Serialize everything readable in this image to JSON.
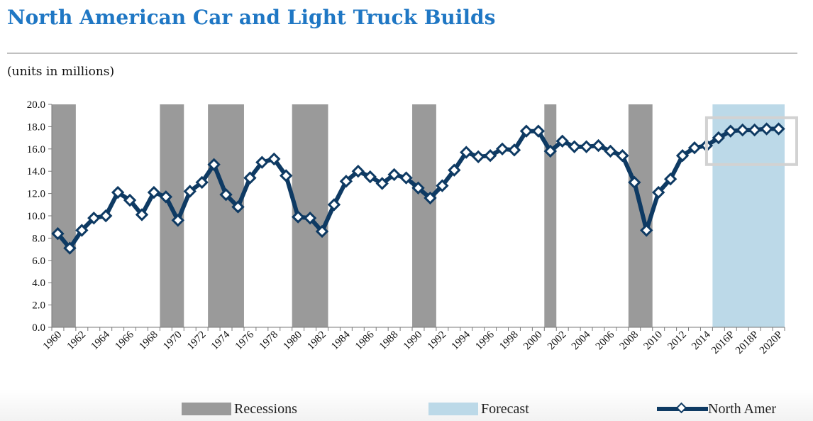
{
  "title": "North American Car and Light Truck Builds",
  "units_label": "(units in millions)",
  "colors": {
    "title": "#1f77c4",
    "recession": "#9a9a9a",
    "forecast": "#bcd9e8",
    "series": "#0e3a63",
    "marker_fill": "#ffffff",
    "highlight_box": "#d2d2d2"
  },
  "legend": {
    "recessions": "Recessions",
    "forecast": "Forecast",
    "series": "North Amer"
  },
  "chart_data": {
    "type": "line",
    "title": "North American Car and Light Truck Builds",
    "ylabel": "(units in millions)",
    "ylim": [
      0,
      20
    ],
    "yticks": [
      "0.0",
      "2.0",
      "4.0",
      "6.0",
      "8.0",
      "10.0",
      "12.0",
      "14.0",
      "16.0",
      "18.0",
      "20.0"
    ],
    "x_tick_labels": [
      "1960",
      "1962",
      "1964",
      "1966",
      "1968",
      "1970",
      "1972",
      "1974",
      "1976",
      "1978",
      "1980",
      "1982",
      "1984",
      "1986",
      "1988",
      "1990",
      "1992",
      "1994",
      "1996",
      "1998",
      "2000",
      "2002",
      "2004",
      "2006",
      "2008",
      "2010",
      "2012",
      "2014",
      "2016P",
      "2018P",
      "2020P"
    ],
    "x": [
      "1960",
      "1961",
      "1962",
      "1963",
      "1964",
      "1965",
      "1966",
      "1967",
      "1968",
      "1969",
      "1970",
      "1971",
      "1972",
      "1973",
      "1974",
      "1975",
      "1976",
      "1977",
      "1978",
      "1979",
      "1980",
      "1981",
      "1982",
      "1983",
      "1984",
      "1985",
      "1986",
      "1987",
      "1988",
      "1989",
      "1990",
      "1991",
      "1992",
      "1993",
      "1994",
      "1995",
      "1996",
      "1997",
      "1998",
      "1999",
      "2000",
      "2001",
      "2002",
      "2003",
      "2004",
      "2005",
      "2006",
      "2007",
      "2008",
      "2009",
      "2010",
      "2011",
      "2012",
      "2013",
      "2014",
      "2015",
      "2016P",
      "2017P",
      "2018P",
      "2019P",
      "2020P"
    ],
    "series": [
      {
        "name": "North Amer",
        "values": [
          8.4,
          7.1,
          8.7,
          9.8,
          10.0,
          12.1,
          11.4,
          10.1,
          12.1,
          11.7,
          9.6,
          12.2,
          13.0,
          14.6,
          11.9,
          10.8,
          13.4,
          14.8,
          15.1,
          13.6,
          9.9,
          9.8,
          8.6,
          11.0,
          13.1,
          14.0,
          13.5,
          12.9,
          13.7,
          13.4,
          12.5,
          11.6,
          12.7,
          14.1,
          15.7,
          15.3,
          15.4,
          16.0,
          15.9,
          17.6,
          17.6,
          15.8,
          16.7,
          16.2,
          16.2,
          16.3,
          15.8,
          15.4,
          13.0,
          8.7,
          12.1,
          13.3,
          15.4,
          16.1,
          16.3,
          17.0,
          17.6,
          17.7,
          17.7,
          17.8,
          17.8
        ]
      }
    ],
    "recessions": [
      [
        "1960",
        "1961"
      ],
      [
        "1969",
        "1970"
      ],
      [
        "1973",
        "1975"
      ],
      [
        "1980",
        "1982"
      ],
      [
        "1990",
        "1991"
      ],
      [
        "2001",
        "2001"
      ],
      [
        "2008",
        "2009"
      ]
    ],
    "forecast_range": [
      "2015",
      "2020P"
    ],
    "grid": false,
    "legend_position": "bottom"
  }
}
